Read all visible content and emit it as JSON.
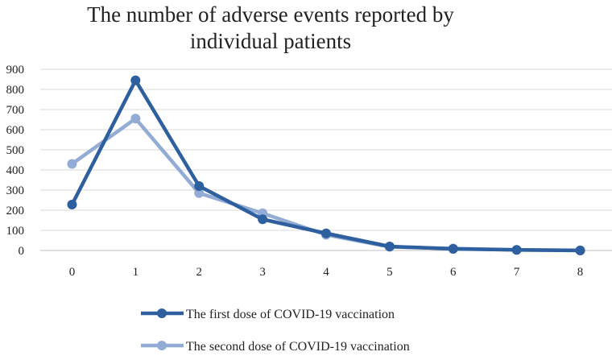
{
  "chart_data": {
    "type": "line",
    "title_lines": [
      "The number of adverse events reported  by",
      "individual patients"
    ],
    "xlabel": "",
    "ylabel": "",
    "categories": [
      "0",
      "1",
      "2",
      "3",
      "4",
      "5",
      "6",
      "7",
      "8"
    ],
    "ylim": [
      0,
      900
    ],
    "yticks": [
      "0",
      "100",
      "200",
      "300",
      "400",
      "500",
      "600",
      "700",
      "800",
      "900"
    ],
    "grid": true,
    "legend_position": "bottom",
    "series": [
      {
        "name": "The first dose of COVID-19 vaccination",
        "color": "#2e5f9e",
        "values": [
          228,
          845,
          320,
          155,
          85,
          20,
          8,
          3,
          0
        ]
      },
      {
        "name": "The second dose of COVID-19 vaccination",
        "color": "#93acd6",
        "values": [
          430,
          655,
          285,
          185,
          78,
          18,
          10,
          3,
          1
        ]
      }
    ]
  }
}
